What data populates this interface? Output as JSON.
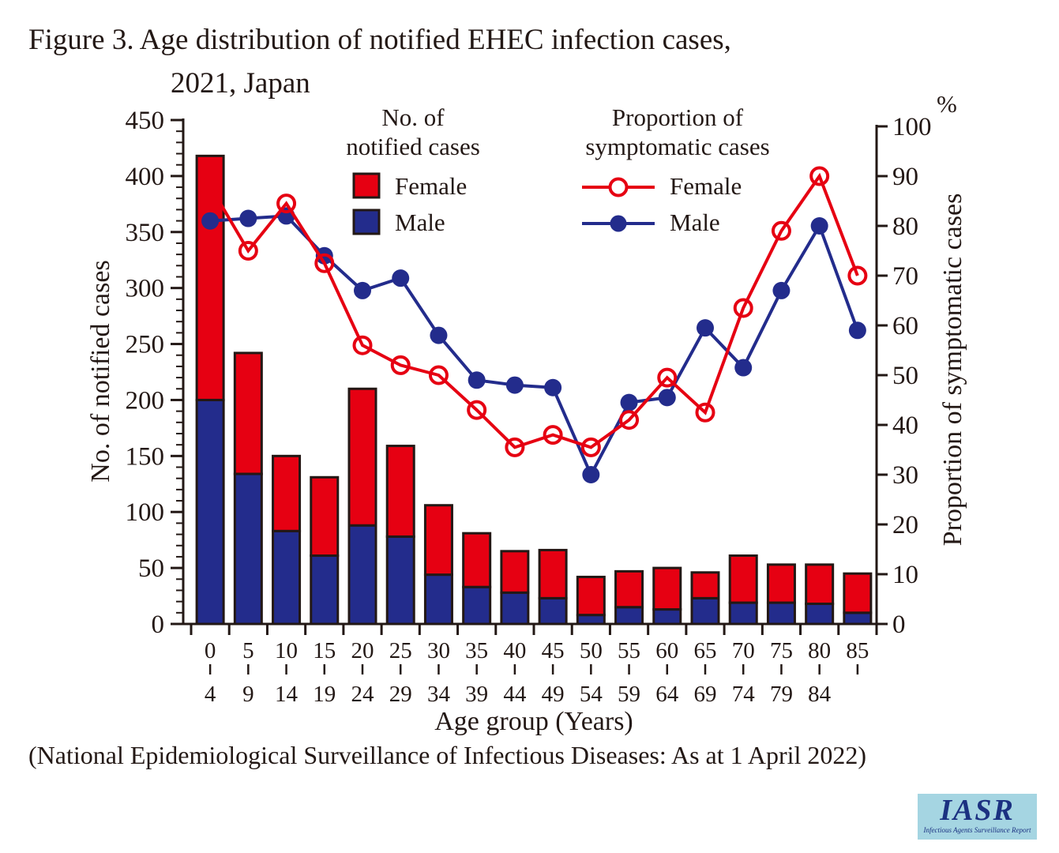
{
  "title": {
    "line1": "Figure 3. Age distribution of notified EHEC infection cases,",
    "line2": "2021, Japan"
  },
  "caption": "(National Epidemiological Surveillance of Infectious Diseases: As at 1 April 2022)",
  "colors": {
    "female_red": "#e60012",
    "male_blue": "#232c8c",
    "ink": "#231815",
    "logo_bg": "#a5d5e2",
    "logo_ink": "#1b3181"
  },
  "legend": {
    "bars_header": [
      "No. of",
      "notified cases"
    ],
    "lines_header": [
      "Proportion of",
      "symptomatic cases"
    ],
    "female_label": "Female",
    "male_label": "Male"
  },
  "axes": {
    "left_title": "No. of notified cases",
    "right_title": "Proportion of symptomatic cases",
    "right_unit": "%",
    "x_title": "Age group (Years)",
    "left_range": [
      0,
      450
    ],
    "left_tick_step": 50,
    "left_minor_step": 10,
    "right_range": [
      0,
      100
    ],
    "right_tick_step": 10,
    "grid": "off",
    "legend_position": "top-inside"
  },
  "chart_data": {
    "type": "bar+line",
    "categories": [
      "0-4",
      "5-9",
      "10-14",
      "15-19",
      "20-24",
      "25-29",
      "30-34",
      "35-39",
      "40-44",
      "45-49",
      "50-54",
      "55-59",
      "60-64",
      "65-69",
      "70-74",
      "75-79",
      "80-84",
      "85-"
    ],
    "x_tick_top": [
      "0",
      "5",
      "10",
      "15",
      "20",
      "25",
      "30",
      "35",
      "40",
      "45",
      "50",
      "55",
      "60",
      "65",
      "70",
      "75",
      "80",
      "85"
    ],
    "x_tick_bottom": [
      "4",
      "9",
      "14",
      "19",
      "24",
      "29",
      "34",
      "39",
      "44",
      "49",
      "54",
      "59",
      "64",
      "69",
      "74",
      "79",
      "84",
      ""
    ],
    "bar_series": [
      {
        "name": "Male",
        "axis": "left",
        "stack": "cases",
        "values": [
          200,
          134,
          83,
          61,
          88,
          78,
          44,
          33,
          28,
          23,
          8,
          15,
          13,
          23,
          19,
          19,
          18,
          10
        ]
      },
      {
        "name": "Female",
        "axis": "left",
        "stack": "cases",
        "values": [
          218,
          108,
          67,
          70,
          122,
          81,
          62,
          48,
          37,
          43,
          34,
          32,
          37,
          23,
          42,
          34,
          35,
          35
        ]
      }
    ],
    "bar_totals": [
      418,
      242,
      150,
      131,
      210,
      159,
      106,
      81,
      65,
      66,
      42,
      47,
      50,
      46,
      61,
      53,
      53,
      45
    ],
    "line_series": [
      {
        "name": "Female",
        "axis": "right",
        "marker": "open-circle",
        "values": [
          88,
          75,
          84.5,
          72.5,
          56,
          52,
          50,
          43,
          35.5,
          38,
          35.5,
          41,
          49.5,
          42.5,
          63.5,
          79,
          90,
          70
        ]
      },
      {
        "name": "Male",
        "axis": "right",
        "marker": "filled-circle",
        "values": [
          81,
          81.5,
          82,
          74,
          67,
          69.5,
          58,
          49,
          48,
          47.5,
          30,
          44.5,
          45.5,
          59.5,
          51.5,
          67,
          80,
          59
        ]
      }
    ]
  },
  "logo": {
    "title": "IASR",
    "subtitle": "Infectious Agents Surveillance Report"
  }
}
